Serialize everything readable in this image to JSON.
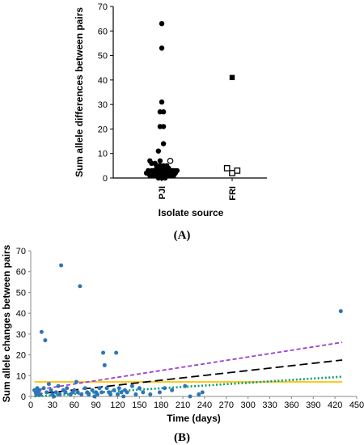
{
  "chart_data": [
    {
      "panel_label": "(A)",
      "type": "scatter",
      "xlabel": "Isolate source",
      "ylabel": "Sum allele differences between pairs",
      "ylim": [
        0,
        70
      ],
      "yticks": [
        0,
        10,
        20,
        30,
        40,
        50,
        60,
        70
      ],
      "categories": [
        "PJI",
        "FRI"
      ],
      "series": [
        {
          "category": "PJI",
          "marker": "filled-circle",
          "points": [
            [
              0,
              63
            ],
            [
              0,
              53
            ],
            [
              0,
              31
            ],
            [
              -1,
              27
            ],
            [
              1,
              27
            ],
            [
              -1,
              21
            ],
            [
              1,
              21
            ],
            [
              1,
              14
            ],
            [
              -2,
              11
            ],
            [
              -1,
              7
            ],
            [
              -7,
              7
            ],
            [
              -6,
              6
            ],
            [
              -4,
              6
            ],
            [
              -3,
              5
            ],
            [
              -1,
              5
            ],
            [
              1,
              5
            ],
            [
              3,
              5
            ],
            [
              -3,
              4
            ],
            [
              -2,
              4
            ],
            [
              0,
              4
            ],
            [
              2,
              4
            ],
            [
              4,
              4
            ],
            [
              -8,
              3
            ],
            [
              -6,
              3
            ],
            [
              -5,
              3
            ],
            [
              -3,
              3
            ],
            [
              -2,
              3
            ],
            [
              0,
              3
            ],
            [
              2,
              3
            ],
            [
              3,
              3
            ],
            [
              5,
              3
            ],
            [
              6,
              3
            ],
            [
              7,
              3
            ],
            [
              8,
              3
            ],
            [
              9,
              3
            ],
            [
              -9,
              2
            ],
            [
              -8,
              2
            ],
            [
              -6,
              2
            ],
            [
              -5,
              2
            ],
            [
              -3,
              2
            ],
            [
              -2,
              2
            ],
            [
              0,
              2
            ],
            [
              2,
              2
            ],
            [
              3,
              2
            ],
            [
              5,
              2
            ],
            [
              6,
              2
            ],
            [
              8,
              2
            ],
            [
              -7,
              1
            ],
            [
              -5,
              1
            ],
            [
              -3,
              1
            ],
            [
              -1,
              1
            ],
            [
              1,
              1
            ],
            [
              3,
              1
            ],
            [
              5,
              1
            ],
            [
              7,
              1
            ],
            [
              -2,
              0
            ],
            [
              0,
              0
            ],
            [
              2,
              0
            ]
          ]
        },
        {
          "category": "PJI",
          "marker": "open-circle",
          "points": [
            [
              5,
              7
            ]
          ]
        },
        {
          "category": "FRI",
          "marker": "filled-square",
          "points": [
            [
              0,
              41
            ]
          ]
        },
        {
          "category": "FRI",
          "marker": "open-square",
          "points": [
            [
              -3,
              4
            ],
            [
              0,
              2
            ],
            [
              3,
              3
            ]
          ]
        }
      ]
    },
    {
      "panel_label": "(B)",
      "type": "scatter",
      "xlabel": "Time (days)",
      "ylabel": "Sum allele changes between pairs",
      "xlim": [
        0,
        450
      ],
      "ylim": [
        0,
        70
      ],
      "xticks": [
        0,
        30,
        60,
        90,
        120,
        150,
        180,
        210,
        240,
        270,
        300,
        330,
        360,
        390,
        420,
        450
      ],
      "yticks": [
        0,
        10,
        20,
        30,
        40,
        50,
        60,
        70
      ],
      "points_color": "#2e75b6",
      "points": [
        [
          5,
          3
        ],
        [
          7,
          2
        ],
        [
          8,
          1
        ],
        [
          9,
          4
        ],
        [
          10,
          2
        ],
        [
          12,
          3
        ],
        [
          13,
          1
        ],
        [
          15,
          31
        ],
        [
          18,
          4
        ],
        [
          20,
          27
        ],
        [
          22,
          2
        ],
        [
          25,
          6
        ],
        [
          28,
          3
        ],
        [
          30,
          1
        ],
        [
          32,
          0
        ],
        [
          35,
          2
        ],
        [
          38,
          5
        ],
        [
          40,
          1
        ],
        [
          42,
          63
        ],
        [
          45,
          3
        ],
        [
          48,
          2
        ],
        [
          50,
          4
        ],
        [
          55,
          1
        ],
        [
          58,
          2
        ],
        [
          60,
          3
        ],
        [
          63,
          7
        ],
        [
          65,
          2
        ],
        [
          68,
          53
        ],
        [
          70,
          1
        ],
        [
          75,
          4
        ],
        [
          78,
          2
        ],
        [
          80,
          1
        ],
        [
          85,
          3
        ],
        [
          88,
          0
        ],
        [
          90,
          2
        ],
        [
          92,
          1
        ],
        [
          95,
          4
        ],
        [
          98,
          2
        ],
        [
          100,
          21
        ],
        [
          102,
          15
        ],
        [
          105,
          4
        ],
        [
          108,
          2
        ],
        [
          110,
          1
        ],
        [
          115,
          3
        ],
        [
          118,
          21
        ],
        [
          120,
          1
        ],
        [
          122,
          4
        ],
        [
          125,
          2
        ],
        [
          128,
          0
        ],
        [
          130,
          3
        ],
        [
          133,
          2
        ],
        [
          140,
          5
        ],
        [
          145,
          1
        ],
        [
          150,
          4
        ],
        [
          155,
          2
        ],
        [
          165,
          1
        ],
        [
          178,
          2
        ],
        [
          185,
          4
        ],
        [
          195,
          3
        ],
        [
          213,
          5
        ],
        [
          220,
          0
        ],
        [
          232,
          1
        ],
        [
          237,
          2
        ],
        [
          428,
          41
        ]
      ],
      "lines": [
        {
          "style": "solid",
          "color": "#ffc000",
          "points": [
            [
              5,
              7
            ],
            [
              430,
              7
            ]
          ]
        },
        {
          "style": "dashed",
          "color": "#9a3fd0",
          "points": [
            [
              5,
              3
            ],
            [
              430,
              26
            ]
          ]
        },
        {
          "style": "long-dashed",
          "color": "#000000",
          "points": [
            [
              5,
              1
            ],
            [
              430,
              17.5
            ]
          ]
        },
        {
          "style": "dotted",
          "color": "#00a070",
          "points": [
            [
              5,
              0
            ],
            [
              430,
              9.5
            ]
          ]
        }
      ]
    }
  ]
}
